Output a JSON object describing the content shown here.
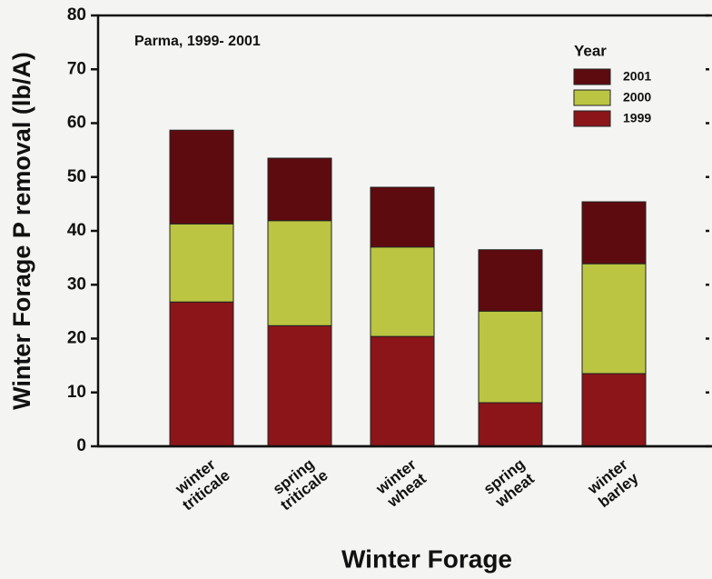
{
  "chart_data": {
    "type": "stacked_bar",
    "annotation": "Parma, 1999- 2001",
    "x_label": "Winter Forage",
    "y_label": "Winter Forage P removal (lb/A)",
    "legend_title": "Year",
    "legend": "top-right",
    "categories": [
      [
        "winter",
        "triticale"
      ],
      [
        "spring",
        "triticale"
      ],
      [
        "winter",
        "wheat"
      ],
      [
        "spring",
        "wheat"
      ],
      [
        "winter",
        "barley"
      ]
    ],
    "series": [
      {
        "name": "1999",
        "color": "#8b1519",
        "values": [
          26.8,
          22.4,
          20.4,
          8.1,
          13.5
        ]
      },
      {
        "name": "2000",
        "color": "#bcc541",
        "values": [
          14.5,
          19.5,
          16.6,
          17.0,
          20.4
        ]
      },
      {
        "name": "2001",
        "color": "#5e0b10",
        "values": [
          17.4,
          11.6,
          11.1,
          11.4,
          11.5
        ]
      }
    ],
    "ylim": [
      0,
      80
    ],
    "yticks": [
      0,
      10,
      20,
      30,
      40,
      50,
      60,
      70,
      80
    ]
  }
}
